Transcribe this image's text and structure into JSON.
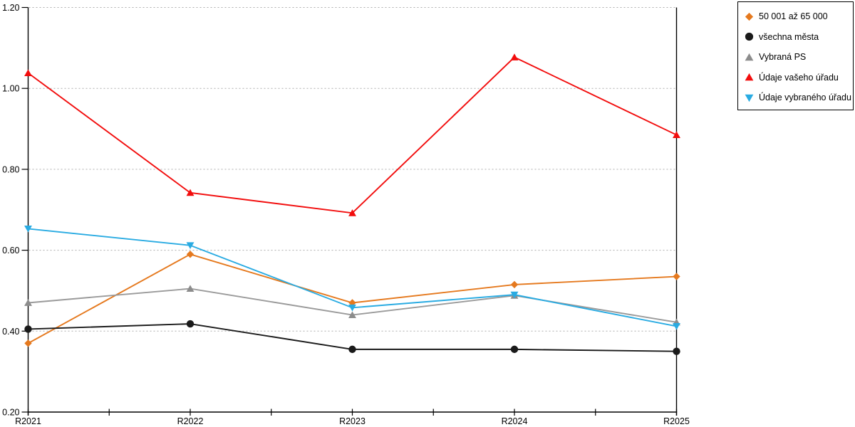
{
  "chart_data": {
    "type": "line",
    "title": "",
    "xlabel": "",
    "ylabel": "",
    "categories": [
      "R2021",
      "R2022",
      "R2023",
      "R2024",
      "R2025"
    ],
    "series": [
      {
        "name": "50 001 až 65 000",
        "marker": "diamond",
        "color": "#E5791E",
        "values": [
          0.37,
          0.59,
          0.47,
          0.515,
          0.535
        ]
      },
      {
        "name": "všechna města",
        "marker": "circle",
        "color": "#1A1A1A",
        "values": [
          0.405,
          0.418,
          0.355,
          0.355,
          0.35
        ]
      },
      {
        "name": "Vybraná PS",
        "marker": "triangle-up",
        "color": "#8C8C8C",
        "line_color": "#9A9A9A",
        "values": [
          0.47,
          0.505,
          0.44,
          0.488,
          0.422
        ]
      },
      {
        "name": "Údaje vašeho úřadu",
        "marker": "triangle-up",
        "color": "#F20D0D",
        "values": [
          1.038,
          0.742,
          0.692,
          1.077,
          0.885
        ]
      },
      {
        "name": "Údaje vybraného úřadu",
        "marker": "triangle-down",
        "color": "#29ABE2",
        "values": [
          0.653,
          0.612,
          0.458,
          0.49,
          0.412
        ]
      }
    ],
    "ylim": [
      0.2,
      1.2
    ],
    "yticks": [
      0.2,
      0.4,
      0.6,
      0.8,
      1.0,
      1.2
    ],
    "ytick_labels": [
      "0.20",
      "0.40",
      "0.60",
      "0.80",
      "1.00",
      "1.20"
    ],
    "grid": true,
    "gridline_color": "#ADADAD",
    "axis_color": "#000000",
    "legend_position": "top-right"
  }
}
